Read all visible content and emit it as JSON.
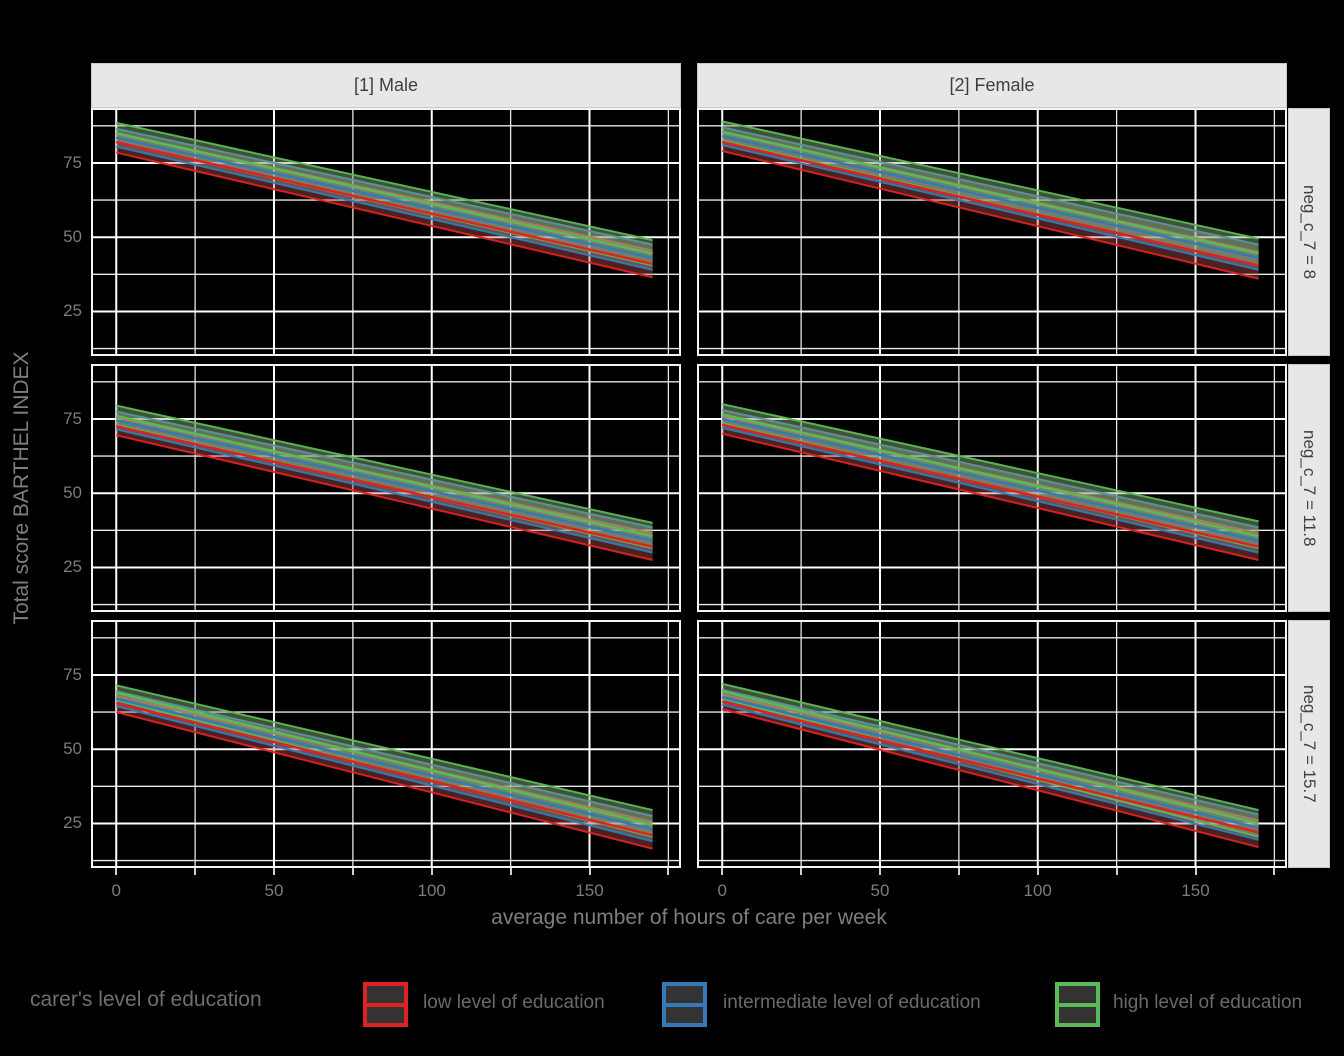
{
  "chart_data": {
    "type": "line",
    "subtype": "faceted-regression-lines-with-confidence-ribbons",
    "xlabel": "average number of hours of care per week",
    "ylabel": "Total score BARTHEL INDEX",
    "x": [
      0,
      170
    ],
    "xlim": [
      -8,
      179
    ],
    "ylim": [
      10,
      93.5
    ],
    "x_major_ticks": [
      0,
      50,
      100,
      150
    ],
    "x_minor_ticks": [
      25,
      75,
      125,
      175
    ],
    "y_major_ticks": [
      75,
      50,
      25
    ],
    "y_minor_ticks": [
      12.5,
      37.5,
      62.5,
      87.5
    ],
    "grid": true,
    "facet_columns": [
      "[1] Male",
      "[2] Female"
    ],
    "facet_rows": [
      "neg_c_7 = 8",
      "neg_c_7 = 11.8",
      "neg_c_7 = 15.7"
    ],
    "series_order": [
      "low",
      "intermediate",
      "high"
    ],
    "series_colors": {
      "low": "#E02124",
      "intermediate": "#337AB7",
      "high": "#5BB957"
    },
    "ribbon_fills": {
      "low": "rgba(200,90,85,0.38)",
      "intermediate": "rgba(150,160,165,0.38)",
      "high": "rgba(140,180,120,0.45)"
    },
    "panels": [
      {
        "row": 0,
        "col": 0,
        "col_label": "[1] Male",
        "row_label": "neg_c_7 = 8",
        "series": {
          "low": {
            "line": [
              82,
              41
            ],
            "upper": [
              85,
              45.5
            ],
            "lower": [
              78.5,
              36.5
            ]
          },
          "intermediate": {
            "line": [
              83.5,
              43
            ],
            "upper": [
              86.5,
              47.5
            ],
            "lower": [
              80.5,
              39
            ]
          },
          "high": {
            "line": [
              85,
              44.5
            ],
            "upper": [
              88.5,
              49
            ],
            "lower": [
              82,
              40.5
            ]
          }
        }
      },
      {
        "row": 0,
        "col": 1,
        "col_label": "[2] Female",
        "row_label": "neg_c_7 = 8",
        "series": {
          "low": {
            "line": [
              82,
              40.5
            ],
            "upper": [
              85.5,
              45
            ],
            "lower": [
              79,
              36
            ]
          },
          "intermediate": {
            "line": [
              84,
              43
            ],
            "upper": [
              87,
              47.5
            ],
            "lower": [
              81,
              39
            ]
          },
          "high": {
            "line": [
              85.5,
              44.5
            ],
            "upper": [
              89,
              49.5
            ],
            "lower": [
              82.5,
              40.5
            ]
          }
        }
      },
      {
        "row": 1,
        "col": 0,
        "col_label": "[1] Male",
        "row_label": "neg_c_7 = 11.8",
        "series": {
          "low": {
            "line": [
              72.5,
              32
            ],
            "upper": [
              75.5,
              36.5
            ],
            "lower": [
              69.5,
              27.5
            ]
          },
          "intermediate": {
            "line": [
              74.5,
              34
            ],
            "upper": [
              77.5,
              38.5
            ],
            "lower": [
              71.5,
              30
            ]
          },
          "high": {
            "line": [
              76,
              35.5
            ],
            "upper": [
              79.5,
              40
            ],
            "lower": [
              73,
              31.5
            ]
          }
        }
      },
      {
        "row": 1,
        "col": 1,
        "col_label": "[2] Female",
        "row_label": "neg_c_7 = 11.8",
        "series": {
          "low": {
            "line": [
              73,
              32
            ],
            "upper": [
              76,
              36.5
            ],
            "lower": [
              70,
              27.5
            ]
          },
          "intermediate": {
            "line": [
              75,
              34
            ],
            "upper": [
              78,
              38.5
            ],
            "lower": [
              72,
              30
            ]
          },
          "high": {
            "line": [
              76.5,
              35.5
            ],
            "upper": [
              80,
              40.5
            ],
            "lower": [
              73.5,
              31.5
            ]
          }
        }
      },
      {
        "row": 2,
        "col": 0,
        "col_label": "[1] Male",
        "row_label": "neg_c_7 = 15.7",
        "series": {
          "low": {
            "line": [
              65.5,
              21
            ],
            "upper": [
              68,
              25.5
            ],
            "lower": [
              62.5,
              16.5
            ]
          },
          "intermediate": {
            "line": [
              67,
              23
            ],
            "upper": [
              69.5,
              27.5
            ],
            "lower": [
              64.5,
              19
            ]
          },
          "high": {
            "line": [
              69,
              24.5
            ],
            "upper": [
              71.5,
              29.5
            ],
            "lower": [
              66.5,
              20.5
            ]
          }
        }
      },
      {
        "row": 2,
        "col": 1,
        "col_label": "[2] Female",
        "row_label": "neg_c_7 = 15.7",
        "series": {
          "low": {
            "line": [
              66,
              22
            ],
            "upper": [
              68.5,
              26
            ],
            "lower": [
              63.5,
              17
            ]
          },
          "intermediate": {
            "line": [
              67.5,
              23.5
            ],
            "upper": [
              70,
              28
            ],
            "lower": [
              65,
              19.5
            ]
          },
          "high": {
            "line": [
              69.5,
              25
            ],
            "upper": [
              72,
              29.5
            ],
            "lower": [
              67,
              20.5
            ]
          }
        }
      }
    ],
    "legend": {
      "title": "carer's level of education",
      "position": "bottom",
      "items": [
        {
          "key": "low",
          "label": "low level of education",
          "color": "#E02124"
        },
        {
          "key": "intermediate",
          "label": "intermediate level of education",
          "color": "#337AB7"
        },
        {
          "key": "high",
          "label": "high level of education",
          "color": "#5BB957"
        }
      ]
    },
    "colors": {
      "background": "#000000",
      "grid_major": "#FFFFFF",
      "grid_minor": "#E6E6E6",
      "panel_border": "#F5F5F5",
      "strip_background": "#E7E7E7",
      "strip_text": "#3F3F3F",
      "axis_text": "#7C7C7C",
      "legend_key_fill": "#333333"
    }
  }
}
